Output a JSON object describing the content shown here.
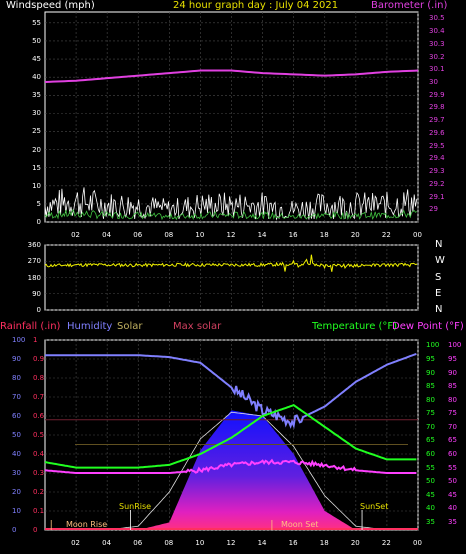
{
  "colors": {
    "background": "#000000",
    "frame": "#ffffff",
    "grid": "#4a4a4a",
    "wind_axis": "#ffffff",
    "barometer": "#e040e0",
    "title": "#e8e000",
    "wind_dir": "#f0f000",
    "rainfall": "#ff3060",
    "humidity": "#8080ff",
    "solar": "#c0b060",
    "max_solar": "#d04060",
    "temperature": "#20ff20",
    "dew_point": "#ff40ff"
  },
  "top_chart": {
    "left_label": "Windspeed (mph)",
    "title": "24 hour graph day : July 04 2021",
    "right_label": "Barometer (.in)",
    "left_ticks": [
      "55",
      "50",
      "45",
      "40",
      "35",
      "30",
      "25",
      "20",
      "15",
      "10",
      "5",
      "0"
    ],
    "right_ticks": [
      "30.5",
      "30.4",
      "30.3",
      "30.2",
      "30.1",
      "30",
      "29.9",
      "29.8",
      "29.7",
      "29.6",
      "29.5",
      "29.4",
      "29.3",
      "29.2",
      "29.1",
      "29"
    ],
    "x_ticks": [
      "02",
      "04",
      "06",
      "08",
      "10",
      "12",
      "14",
      "16",
      "18",
      "20",
      "22",
      "00"
    ]
  },
  "direction_chart": {
    "left_ticks": [
      "360",
      "270",
      "180",
      "90",
      "0"
    ],
    "right_ticks": [
      "N",
      "W",
      "S",
      "E",
      "N"
    ]
  },
  "bottom_chart": {
    "labels": {
      "rainfall": "Rainfall (.in)",
      "humidity": "Humidity",
      "solar": "Solar",
      "max_solar": "Max solar",
      "temperature": "Temperature (°F)",
      "dew_point": "Dew Point (°F)"
    },
    "humidity_ticks": [
      "100",
      "90",
      "80",
      "70",
      "60",
      "50",
      "40",
      "30",
      "20",
      "10",
      "0"
    ],
    "rain_ticks": [
      "1",
      "0.9",
      "0.8",
      "0.7",
      "0.6",
      "0.5",
      "0.4",
      "0.3",
      "0.2",
      "0.1",
      "0"
    ],
    "temp_ticks": [
      "100",
      "95",
      "90",
      "85",
      "80",
      "75",
      "70",
      "65",
      "60",
      "55",
      "50",
      "45",
      "40",
      "35"
    ],
    "dew_ticks": [
      "100",
      "95",
      "90",
      "85",
      "80",
      "75",
      "70",
      "65",
      "60",
      "55",
      "50",
      "45",
      "40",
      "35"
    ],
    "x_ticks": [
      "02",
      "04",
      "06",
      "08",
      "10",
      "12",
      "14",
      "16",
      "18",
      "20",
      "22",
      "00"
    ],
    "annotations": {
      "moon_rise": "Moon Rise",
      "sunrise": "SunRise",
      "moon_set": "Moon Set",
      "sunset": "SunSet"
    }
  },
  "chart_data": [
    {
      "type": "line",
      "title": "24 hour graph day : July 04 2021",
      "ylabel": "Windspeed (mph)",
      "y2label": "Barometer (.in)",
      "x": [
        0,
        2,
        4,
        6,
        8,
        10,
        12,
        14,
        16,
        18,
        20,
        22,
        24
      ],
      "ylim": [
        0,
        58
      ],
      "y2lim": [
        28.9,
        30.55
      ],
      "series": [
        {
          "name": "Barometer (.in)",
          "axis": "right",
          "values": [
            30.0,
            30.01,
            30.03,
            30.05,
            30.07,
            30.09,
            30.09,
            30.07,
            30.06,
            30.05,
            30.06,
            30.08,
            30.09
          ]
        },
        {
          "name": "Windspeed (mph)",
          "axis": "left",
          "values": [
            4,
            5,
            4,
            4,
            3,
            4,
            4,
            4,
            3,
            4,
            4,
            4,
            5
          ]
        }
      ]
    },
    {
      "type": "line",
      "ylabel": "Wind direction",
      "x": [
        0,
        2,
        4,
        6,
        8,
        10,
        12,
        14,
        16,
        18,
        20,
        22,
        24
      ],
      "ylim": [
        0,
        360
      ],
      "series": [
        {
          "values": [
            245,
            250,
            250,
            248,
            250,
            250,
            250,
            250,
            255,
            250,
            245,
            250,
            250
          ]
        }
      ]
    },
    {
      "type": "line",
      "x": [
        0,
        2,
        4,
        6,
        8,
        10,
        12,
        14,
        16,
        18,
        20,
        22,
        24
      ],
      "ylim": [
        0,
        100
      ],
      "y2lim": [
        32,
        102
      ],
      "series": [
        {
          "name": "Humidity",
          "axis": "left",
          "values": [
            92,
            92,
            92,
            92,
            91,
            88,
            75,
            63,
            57,
            65,
            78,
            87,
            93
          ]
        },
        {
          "name": "Temperature (°F)",
          "axis": "right",
          "values": [
            57,
            55,
            55,
            55,
            56,
            60,
            66,
            74,
            78,
            70,
            62,
            58,
            58
          ]
        },
        {
          "name": "Dew Point (°F)",
          "axis": "right",
          "values": [
            54,
            53,
            53,
            53,
            53,
            54,
            56,
            57,
            57,
            56,
            54,
            53,
            53
          ]
        },
        {
          "name": "Solar",
          "axis": "left",
          "values": [
            0,
            0,
            0,
            0,
            4,
            42,
            63,
            60,
            40,
            10,
            0,
            0,
            0
          ]
        },
        {
          "name": "Max solar",
          "axis": "left",
          "values": [
            0,
            0,
            0,
            2,
            20,
            48,
            62,
            60,
            44,
            18,
            2,
            0,
            0
          ]
        }
      ]
    }
  ]
}
